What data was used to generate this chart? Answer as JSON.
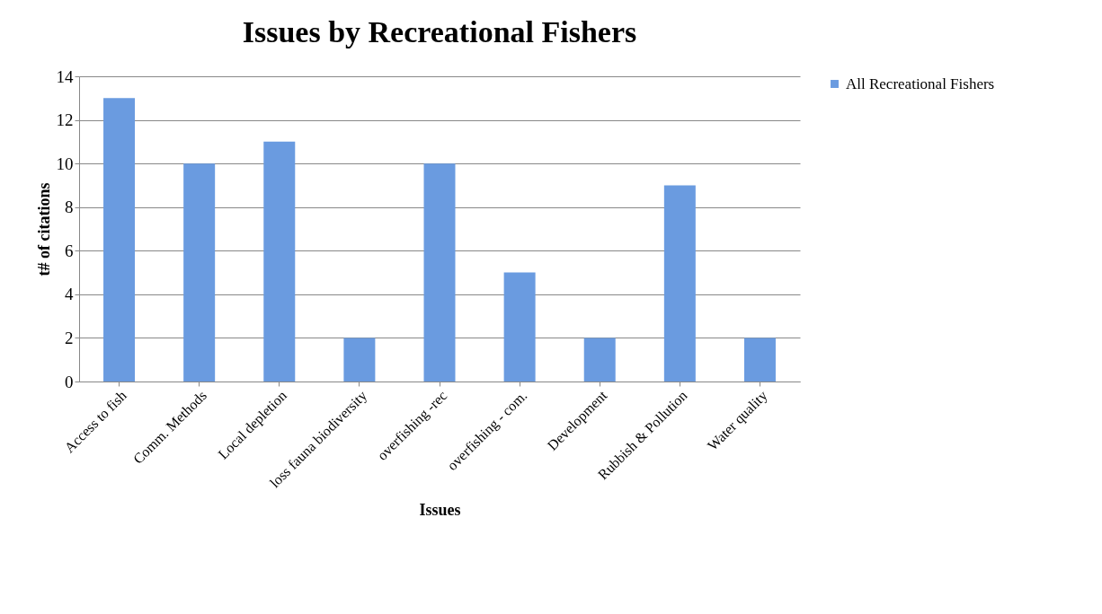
{
  "chart_data": {
    "type": "bar",
    "title": "Issues by Recreational Fishers",
    "xlabel": "Issues",
    "ylabel": "t# of citations",
    "categories": [
      "Access to fish",
      "Comm. Methods",
      "Local depletion",
      "loss fauna biodiversity",
      "overfishing -rec",
      "overfishing - com.",
      "Development",
      "Rubbish & Pollution",
      "Water quality"
    ],
    "series": [
      {
        "name": "All Recreational Fishers",
        "color": "#6a9be0",
        "values": [
          13,
          10,
          11,
          2,
          10,
          5,
          2,
          9,
          2
        ]
      }
    ],
    "ylim": [
      0,
      14
    ],
    "yticks": [
      0,
      2,
      4,
      6,
      8,
      10,
      12,
      14
    ],
    "grid": "y",
    "legend": "right"
  }
}
